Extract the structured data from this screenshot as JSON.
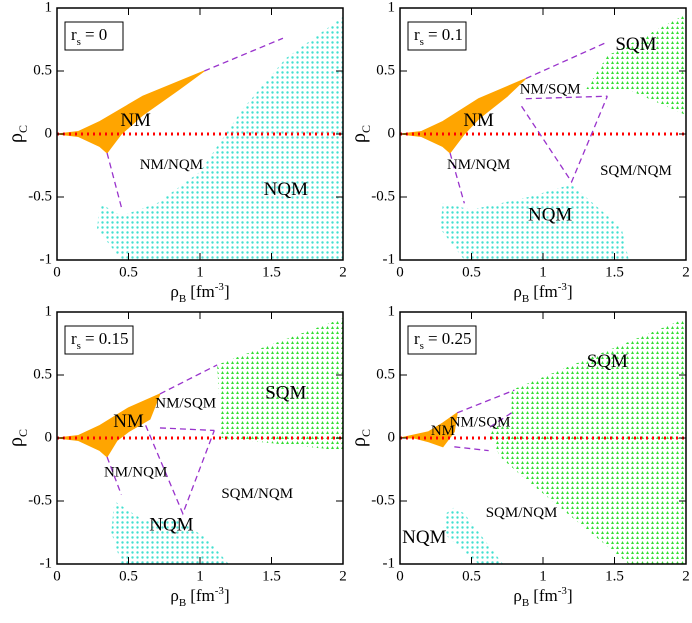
{
  "chart_data": [
    {
      "type": "region",
      "box_var": "r",
      "box_sub": "s",
      "box_text": "= 0",
      "ylabel": {
        "main": "ρ",
        "sub": "C"
      },
      "xlabel": {
        "main": "ρ",
        "sub": "B",
        "unit": "[fm",
        "sup": "-3",
        "end": "]"
      },
      "xlim": [
        0,
        2
      ],
      "ylim": [
        -1,
        1
      ],
      "xticks": [
        0,
        0.5,
        1,
        1.5,
        2
      ],
      "yticks": [
        -1,
        -0.5,
        0,
        0.5,
        1
      ],
      "regions": [
        {
          "name": "NM",
          "color": "#ffa500",
          "fill": "solid",
          "x": [
            0,
            0.15,
            0.3,
            0.6,
            1.03,
            0.85,
            0.6,
            0.45,
            0.35,
            0.3,
            0.15
          ],
          "y": [
            0,
            0.02,
            0.1,
            0.3,
            0.5,
            0.35,
            0.15,
            0,
            -0.15,
            -0.1,
            -0.02
          ]
        },
        {
          "name": "NQM",
          "color": "#40e0d0",
          "fill": "dots",
          "x": [
            0.3,
            0.45,
            0.7,
            1.0,
            1.3,
            1.6,
            2,
            2,
            0.45,
            0.28
          ],
          "y": [
            -0.55,
            -0.65,
            -0.55,
            -0.3,
            0.2,
            0.6,
            0.93,
            -1,
            -1,
            -0.75
          ]
        }
      ],
      "lines": [
        {
          "x": [
            1.03,
            1.58
          ],
          "y": [
            0.5,
            0.76
          ]
        },
        {
          "x": [
            0.35,
            0.45
          ],
          "y": [
            -0.15,
            -0.58
          ]
        }
      ],
      "annotations": [
        "NM",
        "NM/NQM",
        "NQM"
      ]
    },
    {
      "type": "region",
      "box_var": "r",
      "box_sub": "s",
      "box_text": "= 0.1",
      "ylabel": {
        "main": "ρ",
        "sub": "C"
      },
      "xlabel": {
        "main": "ρ",
        "sub": "B",
        "unit": "[fm",
        "sup": "-3",
        "end": "]"
      },
      "xlim": [
        0,
        2
      ],
      "ylim": [
        -1,
        1
      ],
      "xticks": [
        0,
        0.5,
        1,
        1.5,
        2
      ],
      "yticks": [
        -1,
        -0.5,
        0,
        0.5,
        1
      ],
      "regions": [
        {
          "name": "NM",
          "color": "#ffa500",
          "fill": "solid",
          "x": [
            0,
            0.15,
            0.3,
            0.55,
            0.88,
            0.75,
            0.55,
            0.45,
            0.35,
            0.3,
            0.15
          ],
          "y": [
            0,
            0.02,
            0.1,
            0.28,
            0.44,
            0.3,
            0.12,
            0,
            -0.15,
            -0.1,
            -0.02
          ]
        },
        {
          "name": "SQM",
          "color": "#33dd33",
          "fill": "tri",
          "x": [
            1.45,
            2,
            2,
            1.6,
            1.3
          ],
          "y": [
            0.62,
            0.95,
            0.15,
            0.35,
            0.35
          ]
        },
        {
          "name": "NQM",
          "color": "#40e0d0",
          "fill": "dots",
          "x": [
            0.3,
            0.5,
            0.9,
            1.2,
            1.55,
            1.6,
            0.45,
            0.28
          ],
          "y": [
            -0.55,
            -0.6,
            -0.5,
            -0.4,
            -0.75,
            -1,
            -1,
            -0.75
          ]
        }
      ],
      "lines": [
        {
          "x": [
            0.88,
            1.45
          ],
          "y": [
            0.44,
            0.73
          ]
        },
        {
          "x": [
            0.88,
            1.45
          ],
          "y": [
            0.28,
            0.3
          ]
        },
        {
          "x": [
            0.85,
            1.2,
            1.45
          ],
          "y": [
            0.22,
            -0.38,
            0.3
          ]
        },
        {
          "x": [
            0.35,
            0.45
          ],
          "y": [
            -0.15,
            -0.55
          ]
        }
      ],
      "annotations": [
        "SQM",
        "NM/SQM",
        "NM",
        "NM/NQM",
        "SQM/NQM",
        "NQM"
      ]
    },
    {
      "type": "region",
      "box_var": "r",
      "box_sub": "s",
      "box_text": "= 0.15",
      "ylabel": {
        "main": "ρ",
        "sub": "C"
      },
      "xlabel": {
        "main": "ρ",
        "sub": "B",
        "unit": "[fm",
        "sup": "-3",
        "end": "]"
      },
      "xlim": [
        0,
        2
      ],
      "ylim": [
        -1,
        1
      ],
      "xticks": [
        0,
        0.5,
        1,
        1.5,
        2
      ],
      "yticks": [
        -1,
        -0.5,
        0,
        0.5,
        1
      ],
      "regions": [
        {
          "name": "NM",
          "color": "#ffa500",
          "fill": "solid",
          "x": [
            0,
            0.15,
            0.3,
            0.5,
            0.72,
            0.65,
            0.5,
            0.42,
            0.35,
            0.3,
            0.15
          ],
          "y": [
            0,
            0.02,
            0.1,
            0.24,
            0.35,
            0.15,
            0.05,
            -0.02,
            -0.15,
            -0.1,
            -0.02
          ]
        },
        {
          "name": "SQM",
          "color": "#33dd33",
          "fill": "tri",
          "x": [
            1.12,
            1.35,
            2,
            2,
            1.15
          ],
          "y": [
            0.58,
            0.68,
            0.95,
            -0.1,
            0
          ]
        },
        {
          "name": "NQM",
          "color": "#40e0d0",
          "fill": "dots",
          "x": [
            0.4,
            0.6,
            0.85,
            1.05,
            1.2,
            0.45,
            0.38
          ],
          "y": [
            -0.5,
            -0.65,
            -0.65,
            -0.8,
            -1,
            -1,
            -0.75
          ]
        }
      ],
      "lines": [
        {
          "x": [
            0.72,
            1.12
          ],
          "y": [
            0.35,
            0.58
          ]
        },
        {
          "x": [
            0.72,
            1.1
          ],
          "y": [
            0.08,
            0.06
          ]
        },
        {
          "x": [
            0.62,
            0.88,
            1.1
          ],
          "y": [
            0.1,
            -0.6,
            0.06
          ]
        },
        {
          "x": [
            0.35,
            0.45
          ],
          "y": [
            -0.15,
            -0.45
          ]
        }
      ],
      "annotations": [
        "NM",
        "NM/SQM",
        "SQM",
        "NM/NQM",
        "SQM/NQM",
        "NQM"
      ]
    },
    {
      "type": "region",
      "box_var": "r",
      "box_sub": "s",
      "box_text": "= 0.25",
      "ylabel": {
        "main": "ρ",
        "sub": "C"
      },
      "xlabel": {
        "main": "ρ",
        "sub": "B",
        "unit": "[fm",
        "sup": "-3",
        "end": "]"
      },
      "xlim": [
        0,
        2
      ],
      "ylim": [
        -1,
        1
      ],
      "xticks": [
        0,
        0.5,
        1,
        1.5,
        2
      ],
      "yticks": [
        -1,
        -0.5,
        0,
        0.5,
        1
      ],
      "regions": [
        {
          "name": "NM",
          "color": "#ffa500",
          "fill": "solid",
          "x": [
            0,
            0.2,
            0.3,
            0.4,
            0.38,
            0.3,
            0.2,
            0.1
          ],
          "y": [
            0,
            0.05,
            0.12,
            0.2,
            0.05,
            -0.07,
            -0.03,
            0
          ]
        },
        {
          "name": "SQM",
          "color": "#33dd33",
          "fill": "tri",
          "x": [
            0.78,
            2,
            2,
            1.6,
            0.85,
            0.7,
            0.62,
            0.68,
            0.78
          ],
          "y": [
            0.38,
            0.95,
            -1,
            -1,
            -0.3,
            -0.15,
            0.05,
            0.1,
            0.15
          ]
        },
        {
          "name": "NQM",
          "color": "#40e0d0",
          "fill": "dots",
          "x": [
            0.38,
            0.45,
            0.72,
            0.55,
            0.3,
            0.32
          ],
          "y": [
            -0.55,
            -0.6,
            -1,
            -1,
            -0.75,
            -0.6
          ]
        }
      ],
      "lines": [
        {
          "x": [
            0.4,
            0.8
          ],
          "y": [
            0.2,
            0.38
          ]
        },
        {
          "x": [
            0.38,
            0.62
          ],
          "y": [
            -0.07,
            -0.1
          ]
        },
        {
          "x": [
            0.78,
            0.62
          ],
          "y": [
            0.2,
            0.08
          ]
        }
      ],
      "annotations": [
        "NM",
        "NM/SQM",
        "SQM",
        "SQM/NQM",
        "NQM"
      ]
    }
  ]
}
